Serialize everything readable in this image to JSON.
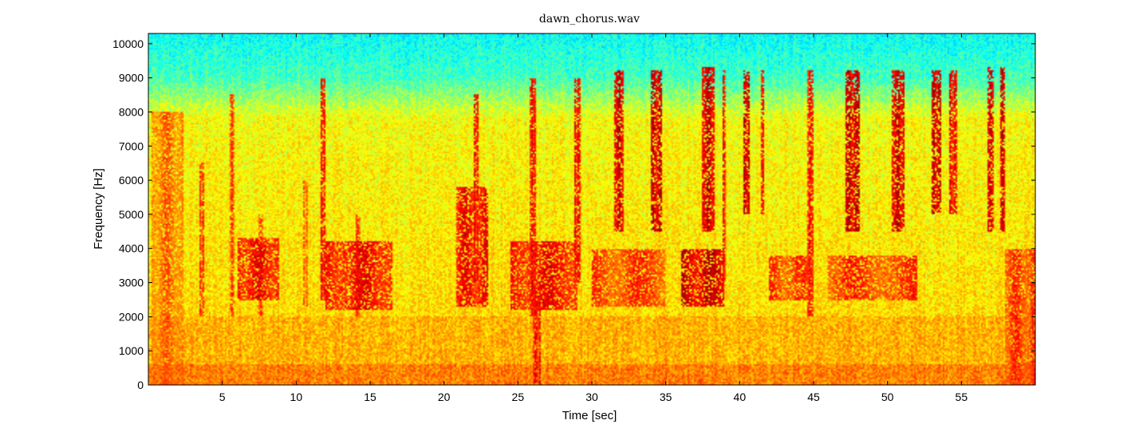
{
  "chart_data": {
    "type": "heatmap",
    "title": "dawn_chorus.wav",
    "xlabel": "Time [sec]",
    "ylabel": "Frequency [Hz]",
    "xlim": [
      0,
      60
    ],
    "ylim": [
      0,
      10300
    ],
    "x_ticks": [
      5,
      10,
      15,
      20,
      25,
      30,
      35,
      40,
      45,
      50,
      55
    ],
    "y_ticks": [
      0,
      1000,
      2000,
      3000,
      4000,
      5000,
      6000,
      7000,
      8000,
      9000,
      10000
    ],
    "colormap": "jet",
    "grid": false,
    "bursts": [
      {
        "t": 0.2,
        "w": 2.2,
        "f0": 0,
        "f1": 8000,
        "intensity": 0.8
      },
      {
        "t": 3.5,
        "w": 0.3,
        "f0": 2000,
        "f1": 6500,
        "intensity": 0.85
      },
      {
        "t": 5.5,
        "w": 0.3,
        "f0": 2000,
        "f1": 8500,
        "intensity": 0.85
      },
      {
        "t": 6.0,
        "w": 2.8,
        "f0": 2500,
        "f1": 4300,
        "intensity": 0.9
      },
      {
        "t": 7.5,
        "w": 0.3,
        "f0": 2000,
        "f1": 5000,
        "intensity": 0.85
      },
      {
        "t": 10.5,
        "w": 0.3,
        "f0": 2300,
        "f1": 6000,
        "intensity": 0.8
      },
      {
        "t": 11.7,
        "w": 0.3,
        "f0": 2500,
        "f1": 9000,
        "intensity": 0.9
      },
      {
        "t": 12.0,
        "w": 4.5,
        "f0": 2200,
        "f1": 4200,
        "intensity": 0.9
      },
      {
        "t": 14.0,
        "w": 0.4,
        "f0": 2000,
        "f1": 5000,
        "intensity": 0.85
      },
      {
        "t": 20.8,
        "w": 2.2,
        "f0": 2300,
        "f1": 5800,
        "intensity": 0.9
      },
      {
        "t": 22.0,
        "w": 0.3,
        "f0": 3000,
        "f1": 8500,
        "intensity": 0.9
      },
      {
        "t": 24.5,
        "w": 4.5,
        "f0": 2200,
        "f1": 4200,
        "intensity": 0.9
      },
      {
        "t": 25.8,
        "w": 0.4,
        "f0": 2000,
        "f1": 9000,
        "intensity": 0.9
      },
      {
        "t": 26.0,
        "w": 0.5,
        "f0": 0,
        "f1": 2500,
        "intensity": 0.9
      },
      {
        "t": 28.8,
        "w": 0.4,
        "f0": 3000,
        "f1": 9000,
        "intensity": 0.9
      },
      {
        "t": 31.5,
        "w": 0.7,
        "f0": 4500,
        "f1": 9200,
        "intensity": 0.95
      },
      {
        "t": 30.0,
        "w": 5.0,
        "f0": 2300,
        "f1": 4000,
        "intensity": 0.85
      },
      {
        "t": 34.0,
        "w": 0.7,
        "f0": 4500,
        "f1": 9200,
        "intensity": 0.95
      },
      {
        "t": 36.0,
        "w": 3.0,
        "f0": 2300,
        "f1": 4000,
        "intensity": 0.95
      },
      {
        "t": 37.4,
        "w": 0.9,
        "f0": 4500,
        "f1": 9300,
        "intensity": 0.95
      },
      {
        "t": 38.8,
        "w": 0.3,
        "f0": 3000,
        "f1": 9200,
        "intensity": 0.9
      },
      {
        "t": 40.2,
        "w": 0.5,
        "f0": 5000,
        "f1": 9200,
        "intensity": 0.95
      },
      {
        "t": 41.4,
        "w": 0.3,
        "f0": 5000,
        "f1": 9200,
        "intensity": 0.9
      },
      {
        "t": 42.0,
        "w": 3.0,
        "f0": 2500,
        "f1": 3800,
        "intensity": 0.85
      },
      {
        "t": 44.6,
        "w": 0.4,
        "f0": 2000,
        "f1": 9200,
        "intensity": 0.9
      },
      {
        "t": 47.2,
        "w": 0.9,
        "f0": 4500,
        "f1": 9200,
        "intensity": 0.95
      },
      {
        "t": 46.0,
        "w": 6.0,
        "f0": 2500,
        "f1": 3800,
        "intensity": 0.85
      },
      {
        "t": 50.3,
        "w": 0.8,
        "f0": 4500,
        "f1": 9200,
        "intensity": 0.95
      },
      {
        "t": 53.0,
        "w": 0.6,
        "f0": 5000,
        "f1": 9200,
        "intensity": 0.95
      },
      {
        "t": 54.2,
        "w": 0.5,
        "f0": 5000,
        "f1": 9200,
        "intensity": 0.9
      },
      {
        "t": 56.8,
        "w": 0.4,
        "f0": 4500,
        "f1": 9300,
        "intensity": 0.95
      },
      {
        "t": 57.6,
        "w": 0.4,
        "f0": 4500,
        "f1": 9300,
        "intensity": 0.95
      },
      {
        "t": 58.0,
        "w": 2.0,
        "f0": 0,
        "f1": 4000,
        "intensity": 0.85
      }
    ]
  }
}
